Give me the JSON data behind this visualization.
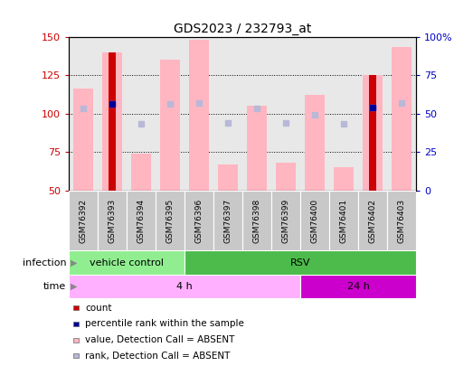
{
  "title": "GDS2023 / 232793_at",
  "samples": [
    "GSM76392",
    "GSM76393",
    "GSM76394",
    "GSM76395",
    "GSM76396",
    "GSM76397",
    "GSM76398",
    "GSM76399",
    "GSM76400",
    "GSM76401",
    "GSM76402",
    "GSM76403"
  ],
  "value_bars": [
    116,
    140,
    74,
    135,
    148,
    67,
    105,
    68,
    112,
    65,
    125,
    143
  ],
  "rank_dots": [
    103,
    106,
    93,
    106,
    107,
    94,
    103,
    94,
    99,
    93,
    104,
    107
  ],
  "count_bars": [
    null,
    140,
    null,
    null,
    null,
    null,
    null,
    null,
    null,
    null,
    125,
    null
  ],
  "count_rank_dots": [
    null,
    106,
    null,
    null,
    null,
    null,
    null,
    null,
    null,
    null,
    104,
    null
  ],
  "ylim": [
    50,
    150
  ],
  "yticks_left": [
    50,
    75,
    100,
    125,
    150
  ],
  "yticks_right_vals": [
    "0",
    "25",
    "50",
    "75",
    "100%"
  ],
  "yticks_right_positions": [
    50,
    75,
    100,
    125,
    150
  ],
  "infection_groups": [
    {
      "label": "vehicle control",
      "start": 0,
      "end": 4,
      "color": "#90EE90"
    },
    {
      "label": "RSV",
      "start": 4,
      "end": 12,
      "color": "#4CBB4C"
    }
  ],
  "time_groups": [
    {
      "label": "4 h",
      "start": 0,
      "end": 8,
      "color": "#FFB0FF"
    },
    {
      "label": "24 h",
      "start": 8,
      "end": 12,
      "color": "#CC00CC"
    }
  ],
  "legend_items": [
    {
      "label": "count",
      "color": "#CC0000"
    },
    {
      "label": "percentile rank within the sample",
      "color": "#000099"
    },
    {
      "label": "value, Detection Call = ABSENT",
      "color": "#FFB6C1"
    },
    {
      "label": "rank, Detection Call = ABSENT",
      "color": "#B8B8D8"
    }
  ],
  "bar_color_value": "#FFB6C1",
  "bar_color_count": "#CC0000",
  "dot_color_rank": "#B8B8D8",
  "dot_color_count_rank": "#000099",
  "left_axis_color": "#CC0000",
  "right_axis_color": "#0000CC",
  "bg_plot": "#E8E8E8",
  "bg_label": "#C8C8C8",
  "bg_white": "#FFFFFF"
}
